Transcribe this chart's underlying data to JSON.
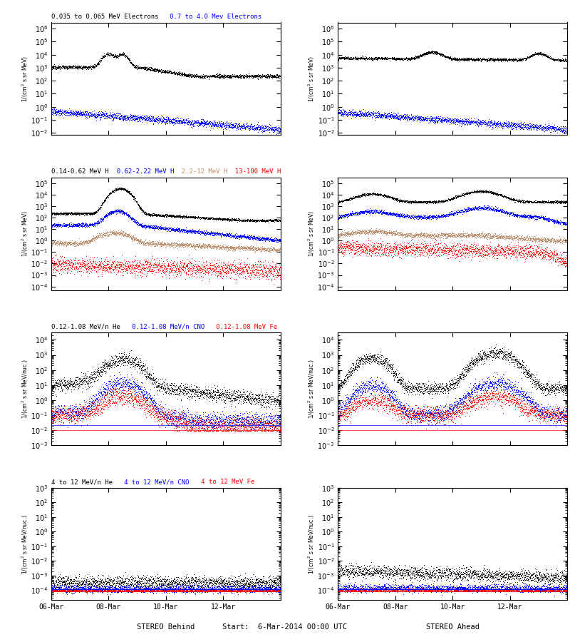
{
  "titles_row0": [
    {
      "text": "0.035 to 0.065 MeV Electrons",
      "color": "black"
    },
    {
      "text": "   0.7 to 4.0 Mev Electrons",
      "color": "blue"
    }
  ],
  "titles_row1": [
    {
      "text": "0.14-0.62 MeV H",
      "color": "black"
    },
    {
      "text": "  0.62-2.22 MeV H",
      "color": "blue"
    },
    {
      "text": "  2.2-12 MeV H",
      "color": "#bc8f6e"
    },
    {
      "text": "  13-100 MeV H",
      "color": "red"
    }
  ],
  "titles_row2": [
    {
      "text": "0.12-1.08 MeV/n He",
      "color": "black"
    },
    {
      "text": "   0.12-1.08 MeV/n CNO",
      "color": "blue"
    },
    {
      "text": "   0.12-1.08 MeV Fe",
      "color": "red"
    }
  ],
  "titles_row3": [
    {
      "text": "4 to 12 MeV/n He",
      "color": "black"
    },
    {
      "text": "   4 to 12 MeV/n CNO",
      "color": "blue"
    },
    {
      "text": "   4 to 12 MeV Fe",
      "color": "red"
    }
  ],
  "xlabel_left": "STEREO Behind",
  "xlabel_center": "Start:  6-Mar-2014 00:00 UTC",
  "xlabel_right": "STEREO Ahead",
  "xtick_labels": [
    "06-Mar",
    "08-Mar",
    "10-Mar",
    "12-Mar"
  ],
  "ylim_row0": [
    0.007,
    3000000.0
  ],
  "ylim_row1": [
    5e-05,
    300000.0
  ],
  "ylim_row2": [
    0.001,
    30000.0
  ],
  "ylim_row3": [
    2e-05,
    1000.0
  ],
  "brown_color": "#bc8f6e"
}
